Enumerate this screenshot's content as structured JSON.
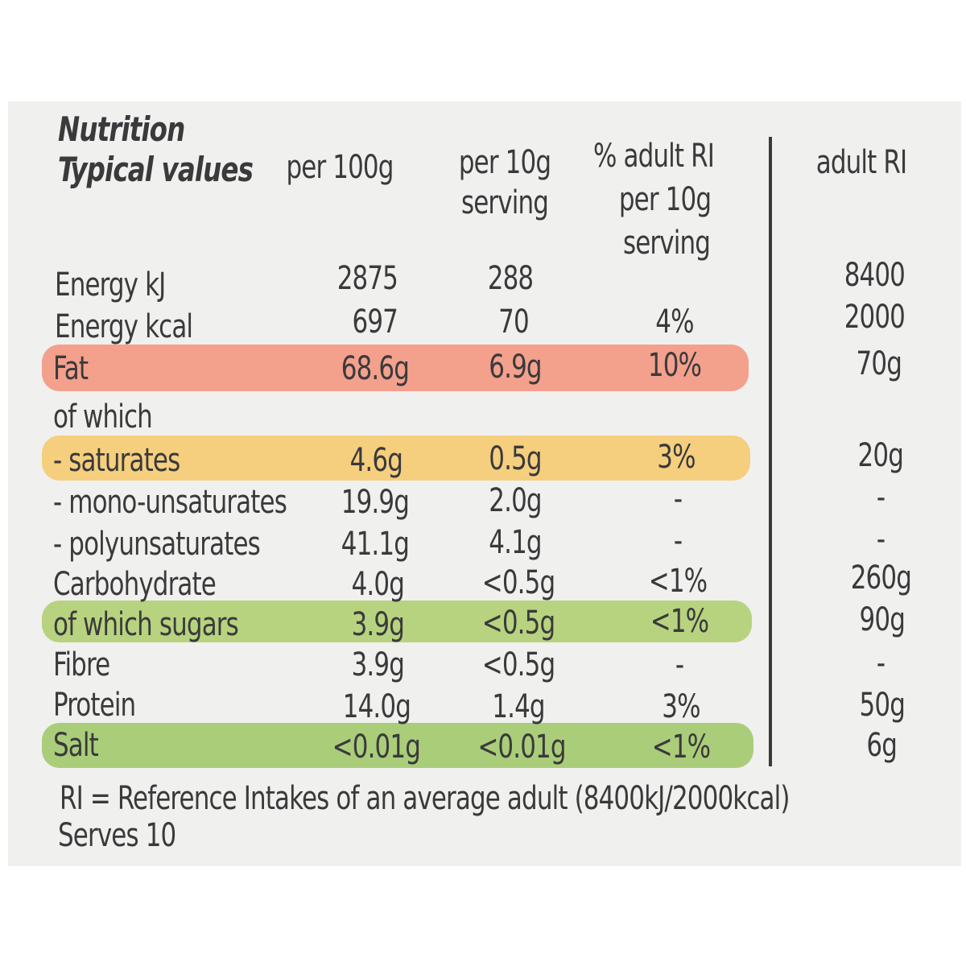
{
  "header": {
    "title_line1": "Nutrition",
    "title_line2": "Typical values",
    "col_per100g": "per 100g",
    "col_per10g_l1": "per 10g",
    "col_per10g_l2": "serving",
    "col_ri_pct_l1": "% adult RI",
    "col_ri_pct_l2": "per 10g",
    "col_ri_pct_l3": "serving",
    "col_adult_ri": "adult RI"
  },
  "rows": [
    {
      "name": "Energy kJ",
      "per100": "2875",
      "per10": "288",
      "ri_pct": "",
      "adult_ri": "8400"
    },
    {
      "name": "Energy kcal",
      "per100": "697",
      "per10": "70",
      "ri_pct": "4%",
      "adult_ri": "2000"
    },
    {
      "name": "Fat",
      "per100": "68.6g",
      "per10": "6.9g",
      "ri_pct": "10%",
      "adult_ri": "70g",
      "highlight": "#f3a08c"
    },
    {
      "name": "of which",
      "per100": "",
      "per10": "",
      "ri_pct": "",
      "adult_ri": ""
    },
    {
      "name": "- saturates",
      "per100": "4.6g",
      "per10": "0.5g",
      "ri_pct": "3%",
      "adult_ri": "20g",
      "highlight": "#f5cf7e"
    },
    {
      "name": "- mono-unsaturates",
      "per100": "19.9g",
      "per10": "2.0g",
      "ri_pct": "-",
      "adult_ri": "-"
    },
    {
      "name": "- polyunsaturates",
      "per100": "41.1g",
      "per10": "4.1g",
      "ri_pct": "-",
      "adult_ri": "-"
    },
    {
      "name": "Carbohydrate",
      "per100": "4.0g",
      "per10": "<0.5g",
      "ri_pct": "<1%",
      "adult_ri": "260g"
    },
    {
      "name": "of which sugars",
      "per100": "3.9g",
      "per10": "<0.5g",
      "ri_pct": "<1%",
      "adult_ri": "90g",
      "highlight": "#b8d37f"
    },
    {
      "name": "Fibre",
      "per100": "3.9g",
      "per10": "<0.5g",
      "ri_pct": "-",
      "adult_ri": "-"
    },
    {
      "name": "Protein",
      "per100": "14.0g",
      "per10": "1.4g",
      "ri_pct": "3%",
      "adult_ri": "50g"
    },
    {
      "name": "Salt",
      "per100": "<0.01g",
      "per10": "<0.01g",
      "ri_pct": "<1%",
      "adult_ri": "6g",
      "highlight": "#aacd7a"
    }
  ],
  "footer": {
    "note": "RI = Reference Intakes of an average adult (8400kJ/2000kcal)",
    "serves": "Serves 10"
  }
}
